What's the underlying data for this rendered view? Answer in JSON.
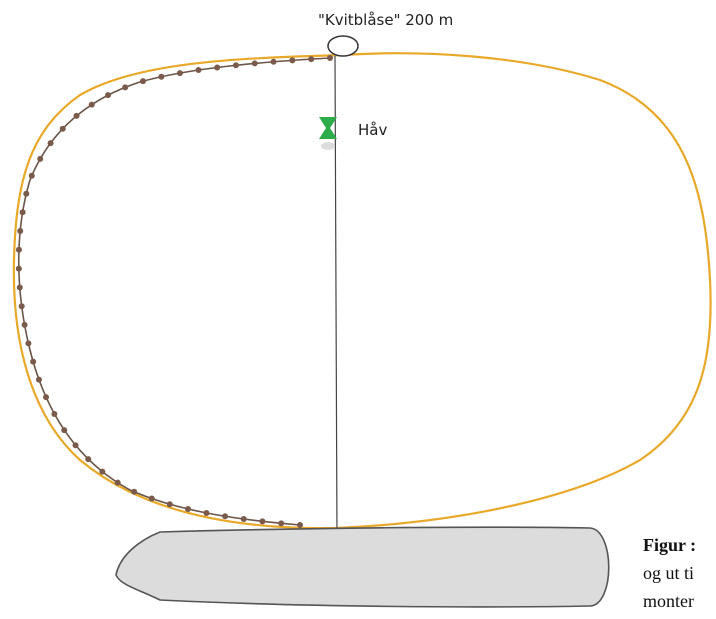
{
  "buoy_label": "\"Kvitblåse\" 200 m",
  "net_label": "Håv",
  "caption": {
    "title": "Figur :",
    "lines": [
      "og ut ti",
      "monter"
    ]
  }
}
